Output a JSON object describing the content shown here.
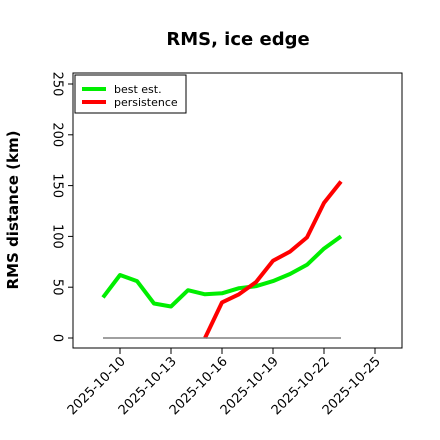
{
  "chart_data": {
    "type": "line",
    "title": "RMS, ice edge",
    "xlabel": "",
    "ylabel": "RMS distance (km)",
    "ylim": [
      0,
      260
    ],
    "yticks": [
      0,
      50,
      100,
      150,
      200,
      250
    ],
    "xlim": [
      -1,
      25
    ],
    "xticks_index": [
      0,
      3,
      6,
      9,
      12,
      15
    ],
    "xtick_labels": [
      "2025-10-10",
      "2025-10-13",
      "2025-10-16",
      "2025-10-19",
      "2025-10-22",
      "2025-10-25"
    ],
    "x_day_index": [
      -1,
      0,
      1,
      2,
      3,
      4,
      5,
      6,
      7,
      8,
      9,
      10,
      11,
      12,
      13
    ],
    "series": [
      {
        "name": "best est.",
        "color": "#00ee00",
        "x": [
          -1,
          0,
          1,
          2,
          3,
          4,
          5,
          6,
          7,
          8,
          9,
          10,
          11,
          12,
          13
        ],
        "values": [
          40,
          62,
          56,
          34,
          31,
          47,
          43,
          44,
          49,
          51,
          56,
          63,
          72,
          88,
          100
        ]
      },
      {
        "name": "persistence",
        "color": "#ff0000",
        "x": [
          5,
          6,
          7,
          8,
          9,
          10,
          11,
          12,
          13
        ],
        "values": [
          0,
          35,
          43,
          55,
          76,
          85,
          99,
          133,
          154
        ]
      },
      {
        "name": "",
        "color": "#808080",
        "x": [
          -1,
          13
        ],
        "values": [
          0,
          0
        ]
      }
    ],
    "legend": "top-left",
    "grid": false
  }
}
